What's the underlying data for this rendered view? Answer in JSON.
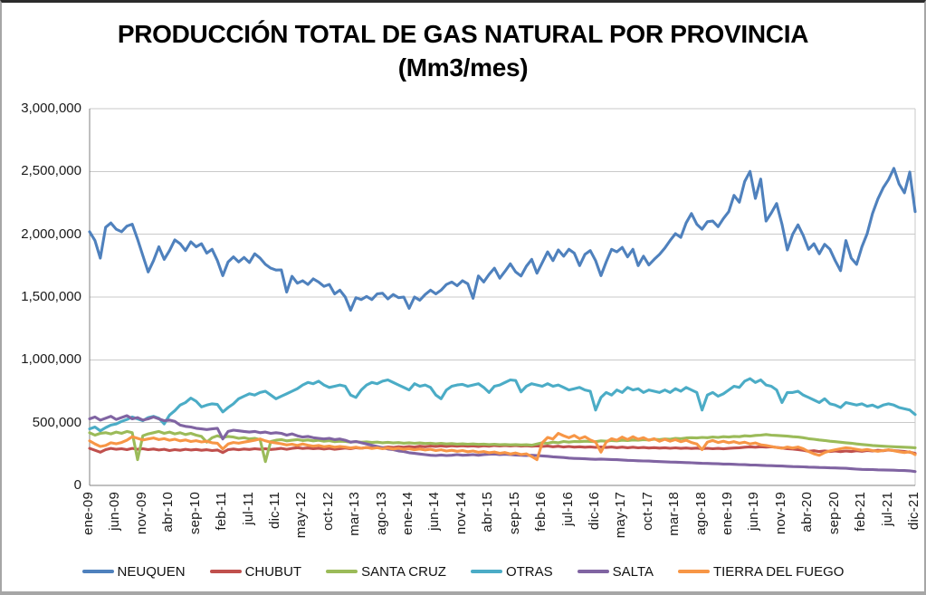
{
  "title": {
    "line1": "PRODUCCIÓN TOTAL DE GAS NATURAL POR PROVINCIA",
    "line2": "(Mm3/mes)"
  },
  "chart_data": {
    "type": "line",
    "title": "PRODUCCIÓN TOTAL DE GAS NATURAL POR PROVINCIA",
    "subtitle": "(Mm3/mes)",
    "x_unit": "month",
    "x_range": [
      "ene-09",
      "dic-21"
    ],
    "n_points": 156,
    "x_tick_interval_months": 5,
    "x_tick_labels": [
      "ene-09",
      "jun-09",
      "nov-09",
      "abr-10",
      "sep-10",
      "feb-11",
      "jul-11",
      "dic-11",
      "may-12",
      "oct-12",
      "mar-13",
      "ago-13",
      "ene-14",
      "jun-14",
      "nov-14",
      "abr-15",
      "sep-15",
      "feb-16",
      "jul-16",
      "dic-16",
      "may-17",
      "oct-17",
      "mar-18",
      "ago-18",
      "ene-19",
      "jun-19",
      "nov-19",
      "abr-20",
      "sep-20",
      "feb-21",
      "jul-21",
      "dic-21"
    ],
    "ylim": [
      0,
      3000000
    ],
    "y_tick_step": 500000,
    "y_tick_values": [
      0,
      500000,
      1000000,
      1500000,
      2000000,
      2500000,
      3000000
    ],
    "grid": "horizontal",
    "legend_position": "bottom",
    "axis_color": "#808080",
    "gridline_color": "#c9c9c9",
    "series": [
      {
        "name": "NEUQUEN",
        "color": "#4F81BD",
        "values": [
          2020000,
          1950000,
          1810000,
          2055000,
          2090000,
          2040000,
          2020000,
          2065000,
          2080000,
          1960000,
          1830000,
          1700000,
          1790000,
          1900000,
          1800000,
          1870000,
          1955000,
          1925000,
          1870000,
          1940000,
          1900000,
          1925000,
          1850000,
          1880000,
          1790000,
          1670000,
          1780000,
          1820000,
          1780000,
          1815000,
          1775000,
          1845000,
          1810000,
          1760000,
          1730000,
          1715000,
          1716000,
          1540000,
          1665000,
          1610000,
          1630000,
          1600000,
          1645000,
          1620000,
          1585000,
          1600000,
          1525000,
          1555000,
          1500000,
          1395000,
          1495000,
          1480000,
          1505000,
          1480000,
          1525000,
          1530000,
          1485000,
          1520000,
          1495000,
          1500000,
          1410000,
          1500000,
          1475000,
          1520000,
          1555000,
          1525000,
          1555000,
          1600000,
          1620000,
          1590000,
          1630000,
          1605000,
          1490000,
          1668000,
          1620000,
          1680000,
          1730000,
          1650000,
          1705000,
          1765000,
          1700000,
          1668000,
          1745000,
          1800000,
          1690000,
          1775000,
          1860000,
          1790000,
          1875000,
          1825000,
          1880000,
          1850000,
          1750000,
          1840000,
          1870000,
          1790000,
          1670000,
          1780000,
          1880000,
          1860000,
          1895000,
          1820000,
          1880000,
          1750000,
          1825000,
          1755000,
          1800000,
          1840000,
          1890000,
          1950000,
          2005000,
          1975000,
          2090000,
          2165000,
          2080000,
          2040000,
          2100000,
          2105000,
          2060000,
          2125000,
          2180000,
          2310000,
          2255000,
          2420000,
          2500000,
          2285000,
          2440000,
          2105000,
          2170000,
          2245000,
          2080000,
          1875000,
          2000000,
          2075000,
          1990000,
          1880000,
          1925000,
          1845000,
          1920000,
          1880000,
          1790000,
          1710000,
          1950000,
          1810000,
          1760000,
          1900000,
          2005000,
          2165000,
          2280000,
          2370000,
          2435000,
          2525000,
          2400000,
          2330000,
          2495000,
          2180000
        ]
      },
      {
        "name": "CHUBUT",
        "color": "#C0504D",
        "values": [
          295000,
          280000,
          265000,
          285000,
          295000,
          288000,
          292000,
          285000,
          295000,
          288000,
          292000,
          285000,
          290000,
          282000,
          288000,
          278000,
          285000,
          280000,
          288000,
          282000,
          286000,
          280000,
          284000,
          278000,
          282000,
          262000,
          285000,
          290000,
          284000,
          290000,
          286000,
          292000,
          288000,
          292000,
          286000,
          290000,
          295000,
          288000,
          295000,
          300000,
          294000,
          298000,
          292000,
          296000,
          290000,
          295000,
          288000,
          292000,
          298000,
          292000,
          300000,
          296000,
          302000,
          298000,
          305000,
          300000,
          306000,
          302000,
          308000,
          304000,
          310000,
          305000,
          312000,
          308000,
          314000,
          310000,
          315000,
          310000,
          316000,
          312000,
          316000,
          312000,
          315000,
          310000,
          316000,
          312000,
          318000,
          314000,
          318000,
          314000,
          318000,
          313000,
          316000,
          312000,
          315000,
          310000,
          314000,
          308000,
          312000,
          306000,
          310000,
          305000,
          308000,
          304000,
          307000,
          303000,
          306000,
          302000,
          306000,
          301000,
          305000,
          300000,
          304000,
          299000,
          302000,
          298000,
          301000,
          297000,
          300000,
          296000,
          299000,
          295000,
          298000,
          294000,
          297000,
          292000,
          296000,
          292000,
          295000,
          291000,
          295000,
          298000,
          300000,
          304000,
          307000,
          304000,
          308000,
          305000,
          308000,
          303000,
          298000,
          293000,
          290000,
          285000,
          280000,
          272000,
          276000,
          270000,
          275000,
          270000,
          274000,
          269000,
          274000,
          270000,
          276000,
          272000,
          278000,
          274000,
          280000,
          276000,
          282000,
          278000,
          274000,
          270000,
          265000,
          255000
        ]
      },
      {
        "name": "SANTA CRUZ",
        "color": "#9BBB59",
        "values": [
          420000,
          400000,
          415000,
          420000,
          410000,
          425000,
          415000,
          430000,
          420000,
          205000,
          395000,
          410000,
          420000,
          430000,
          415000,
          425000,
          410000,
          420000,
          405000,
          415000,
          400000,
          390000,
          345000,
          380000,
          395000,
          380000,
          390000,
          385000,
          375000,
          380000,
          370000,
          375000,
          365000,
          190000,
          350000,
          360000,
          365000,
          355000,
          360000,
          365000,
          358000,
          362000,
          355000,
          360000,
          352000,
          356000,
          348000,
          352000,
          350000,
          345000,
          348000,
          344000,
          347000,
          342000,
          345000,
          340000,
          343000,
          338000,
          341000,
          336000,
          340000,
          335000,
          338000,
          334000,
          336000,
          332000,
          335000,
          330000,
          333000,
          329000,
          331000,
          328000,
          330000,
          327000,
          329000,
          325000,
          328000,
          324000,
          326000,
          323000,
          325000,
          322000,
          324000,
          320000,
          330000,
          340000,
          335000,
          345000,
          340000,
          350000,
          345000,
          350000,
          348000,
          352000,
          350000,
          348000,
          355000,
          352000,
          358000,
          355000,
          360000,
          358000,
          362000,
          360000,
          365000,
          362000,
          368000,
          365000,
          370000,
          368000,
          375000,
          372000,
          378000,
          380000,
          378000,
          382000,
          380000,
          385000,
          382000,
          388000,
          385000,
          390000,
          388000,
          395000,
          392000,
          398000,
          400000,
          405000,
          400000,
          398000,
          395000,
          392000,
          388000,
          385000,
          380000,
          372000,
          368000,
          362000,
          358000,
          352000,
          348000,
          344000,
          340000,
          336000,
          330000,
          326000,
          322000,
          318000,
          315000,
          312000,
          310000,
          308000,
          306000,
          304000,
          302000,
          300000
        ]
      },
      {
        "name": "OTRAS",
        "color": "#4BACC6",
        "values": [
          450000,
          465000,
          435000,
          460000,
          480000,
          490000,
          510000,
          525000,
          545000,
          530000,
          515000,
          540000,
          550000,
          535000,
          490000,
          560000,
          595000,
          640000,
          660000,
          695000,
          670000,
          625000,
          640000,
          650000,
          645000,
          585000,
          620000,
          650000,
          690000,
          710000,
          730000,
          720000,
          740000,
          750000,
          720000,
          690000,
          710000,
          730000,
          750000,
          770000,
          800000,
          820000,
          810000,
          830000,
          800000,
          780000,
          790000,
          800000,
          790000,
          720000,
          700000,
          760000,
          800000,
          820000,
          810000,
          830000,
          840000,
          820000,
          800000,
          780000,
          760000,
          810000,
          790000,
          800000,
          780000,
          720000,
          690000,
          760000,
          790000,
          800000,
          805000,
          790000,
          800000,
          810000,
          780000,
          740000,
          790000,
          800000,
          820000,
          840000,
          835000,
          745000,
          790000,
          810000,
          800000,
          790000,
          810000,
          790000,
          800000,
          780000,
          760000,
          770000,
          780000,
          760000,
          750000,
          600000,
          700000,
          740000,
          720000,
          760000,
          740000,
          780000,
          760000,
          770000,
          740000,
          760000,
          750000,
          740000,
          760000,
          740000,
          770000,
          750000,
          780000,
          760000,
          740000,
          600000,
          720000,
          740000,
          710000,
          730000,
          760000,
          790000,
          780000,
          830000,
          850000,
          820000,
          840000,
          800000,
          790000,
          760000,
          660000,
          740000,
          740000,
          750000,
          720000,
          700000,
          680000,
          660000,
          690000,
          650000,
          640000,
          620000,
          660000,
          650000,
          640000,
          650000,
          630000,
          640000,
          620000,
          640000,
          650000,
          640000,
          620000,
          610000,
          600000,
          565000
        ]
      },
      {
        "name": "SALTA",
        "color": "#8064A2",
        "values": [
          530000,
          545000,
          520000,
          535000,
          550000,
          525000,
          540000,
          555000,
          530000,
          540000,
          520000,
          530000,
          545000,
          530000,
          515000,
          520000,
          510000,
          480000,
          470000,
          465000,
          455000,
          450000,
          445000,
          450000,
          455000,
          370000,
          430000,
          440000,
          435000,
          430000,
          425000,
          430000,
          420000,
          425000,
          415000,
          420000,
          415000,
          400000,
          410000,
          395000,
          385000,
          390000,
          380000,
          375000,
          370000,
          375000,
          365000,
          370000,
          360000,
          345000,
          350000,
          340000,
          330000,
          320000,
          310000,
          300000,
          290000,
          285000,
          275000,
          270000,
          260000,
          255000,
          250000,
          245000,
          240000,
          238000,
          242000,
          238000,
          240000,
          245000,
          240000,
          242000,
          245000,
          240000,
          245000,
          248000,
          250000,
          245000,
          248000,
          245000,
          242000,
          240000,
          238000,
          240000,
          238000,
          235000,
          232000,
          228000,
          225000,
          222000,
          218000,
          215000,
          214000,
          212000,
          210000,
          208000,
          210000,
          208000,
          206000,
          205000,
          203000,
          200000,
          198000,
          196000,
          195000,
          194000,
          192000,
          190000,
          188000,
          186000,
          185000,
          183000,
          182000,
          180000,
          178000,
          176000,
          175000,
          174000,
          172000,
          170000,
          170000,
          168000,
          166000,
          165000,
          163000,
          162000,
          160000,
          158000,
          157000,
          156000,
          154000,
          152000,
          150000,
          149000,
          148000,
          146000,
          145000,
          143000,
          142000,
          140000,
          139000,
          138000,
          136000,
          133000,
          130000,
          128000,
          127000,
          126000,
          124000,
          123000,
          122000,
          121000,
          119000,
          118000,
          116000,
          110000
        ]
      },
      {
        "name": "TIERRA DEL FUEGO",
        "color": "#F79646",
        "values": [
          355000,
          330000,
          310000,
          318000,
          340000,
          332000,
          342000,
          360000,
          388000,
          375000,
          362000,
          370000,
          378000,
          365000,
          372000,
          360000,
          368000,
          355000,
          362000,
          350000,
          356000,
          346000,
          352000,
          340000,
          336000,
          290000,
          330000,
          342000,
          336000,
          345000,
          352000,
          360000,
          370000,
          355000,
          345000,
          338000,
          332000,
          322000,
          328000,
          318000,
          330000,
          320000,
          312000,
          318000,
          308000,
          314000,
          304000,
          310000,
          305000,
          298000,
          304000,
          296000,
          302000,
          294000,
          300000,
          292000,
          298000,
          290000,
          296000,
          288000,
          292000,
          284000,
          290000,
          282000,
          288000,
          278000,
          284000,
          274000,
          280000,
          272000,
          278000,
          268000,
          274000,
          264000,
          270000,
          260000,
          266000,
          256000,
          262000,
          250000,
          258000,
          246000,
          252000,
          230000,
          205000,
          340000,
          382000,
          370000,
          415000,
          395000,
          380000,
          398000,
          372000,
          388000,
          362000,
          345000,
          265000,
          345000,
          372000,
          360000,
          385000,
          365000,
          388000,
          368000,
          380000,
          360000,
          372000,
          352000,
          368000,
          352000,
          365000,
          348000,
          360000,
          342000,
          330000,
          285000,
          345000,
          358000,
          342000,
          352000,
          340000,
          348000,
          336000,
          344000,
          330000,
          338000,
          324000,
          318000,
          310000,
          302000,
          296000,
          305000,
          298000,
          306000,
          292000,
          270000,
          252000,
          240000,
          262000,
          275000,
          284000,
          292000,
          300000,
          295000,
          288000,
          280000,
          286000,
          278000,
          272000,
          278000,
          284000,
          276000,
          268000,
          262000,
          268000,
          245000
        ]
      }
    ]
  }
}
